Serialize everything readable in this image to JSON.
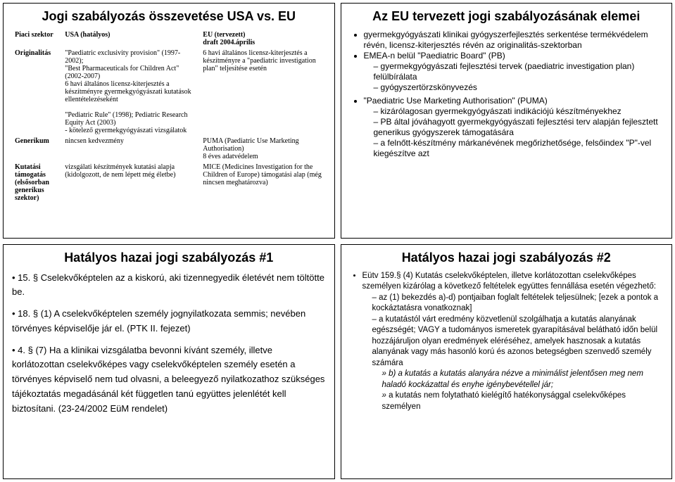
{
  "panel1": {
    "title": "Jogi szabályozás összevetése USA vs. EU",
    "headers": {
      "sector": "Piaci szektor",
      "usa": "USA (hatályos)",
      "eu": "EU (tervezett)\ndraft 2004.április"
    },
    "rows": [
      {
        "label": "Originalitás",
        "usa": "\"Paediatric exclusivity provision\" (1997-2002);\n\"Best Pharmaceuticals for Children Act\" (2002-2007)\n6 havi általános licensz-kiterjesztés a készítményre gyermekgyógyászati kutatások ellentételezéseként\n\n\"Pediatric Rule\" (1998); Pediatric Research Equity Act (2003)\n- kötelező gyermekgyógyászati vizsgálatok",
        "eu": "6 havi általános licensz-kiterjesztés a készítményre a \"paediatric investigation plan\" teljesítése esetén"
      },
      {
        "label": "Generikum",
        "usa": "nincsen kedvezmény",
        "eu": "PUMA (Paediatric Use Marketing Authorisation)\n8 éves adatvédelem"
      },
      {
        "label": "Kutatási támogatás (elsősorban generikus szektor)",
        "usa": "vizsgálati készítmények kutatási alapja (kidolgozott, de nem lépett még életbe)",
        "eu": "MICE (Medicines Investigation for the Children of Europe) támogatási alap (még nincsen meghatározva)"
      }
    ]
  },
  "panel2": {
    "title": "Az EU tervezett jogi szabályozásának elemei",
    "items": [
      {
        "text": "gyermekgyógyászati klinikai gyógyszerfejlesztés serkentése termékvédelem révén, licensz-kiterjesztés révén az originalitás-szektorban"
      },
      {
        "text": "EMEA-n belül \"Paediatric Board\" (PB)",
        "sub": [
          "gyermekgyógyászati fejlesztési tervek (paediatric investigation plan) felülbírálata",
          "gyógyszertörzskönyvezés"
        ]
      },
      {
        "text": "\"Paediatric Use Marketing Authorisation\" (PUMA)",
        "sub": [
          "kizárólagosan gyermekgyógyászati indikációjú készítményekhez",
          "PB által jóváhagyott gyermekgyógyászati fejlesztési terv alapján fejlesztett generikus gyógyszerek támogatására",
          "a felnőtt-készítmény márkanévének megőrizhetősége, felsőindex \"P\"-vel kiegészítve azt"
        ]
      }
    ]
  },
  "panel3": {
    "title": "Hatályos hazai jogi szabályozás #1",
    "items": [
      {
        "num": "15.",
        "text": "§ Cselekvőképtelen az a kiskorú, aki tizennegyedik életévét nem töltötte be."
      },
      {
        "num": "18.",
        "text": "§ (1) A cselekvőképtelen személy jognyilatkozata semmis; nevében törvényes képviselője jár el. (PTK II. fejezet)"
      },
      {
        "num": "4.",
        "text": "§ (7) Ha a klinikai vizsgálatba bevonni kívánt személy, illetve korlátozottan cselekvőképes vagy cselekvőképtelen személy esetén a törvényes képviselő nem tud olvasni, a beleegyező nyilatkozathoz szükséges tájékoztatás megadásánál két független tanú együttes jelenlétét kell biztosítani. (23-24/2002 EüM rendelet)"
      }
    ]
  },
  "panel4": {
    "title": "Hatályos hazai jogi szabályozás #2",
    "lead": "Eütv 159.§ (4) Kutatás cselekvőképtelen, illetve korlátozottan cselekvőképes személyen kizárólag a következő feltételek együttes fennállása esetén végezhető:",
    "items": [
      {
        "text": "az (1) bekezdés a)-d) pontjaiban foglalt feltételek teljesülnek; [ezek a pontok a kockáztatásra vonatkoznak]"
      },
      {
        "text": "a kutatástól várt eredmény közvetlenül szolgálhatja a kutatás alanyának egészségét; VAGY a tudományos ismeretek gyarapításával belátható időn belül hozzájáruljon olyan eredmények eléréséhez, amelyek hasznosak a kutatás alanyának vagy más hasonló korú és azonos betegségben szenvedő személy számára",
        "sub": [
          "b) a kutatás a kutatás alanyára nézve a minimálist jelentősen meg nem haladó kockázattal és enyhe igénybevétellel jár;",
          "a kutatás nem folytatható kielégítő hatékonysággal cselekvőképes személyen"
        ]
      }
    ]
  }
}
